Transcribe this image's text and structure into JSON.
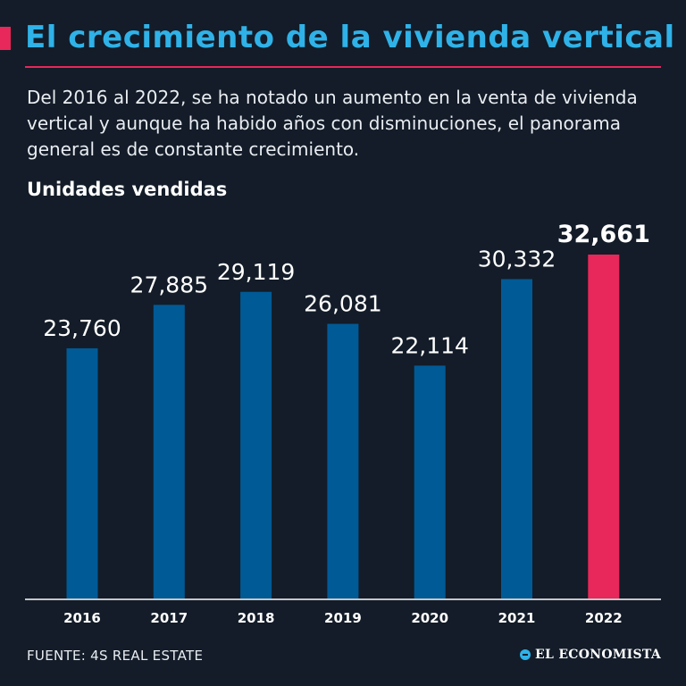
{
  "header": {
    "title": "El crecimiento de la vivienda vertical",
    "subtitle": "Del 2016 al 2022, se ha notado un aumento en la venta de vivienda vertical y aunque ha habido años con disminuciones, el panorama general es de constante crecimiento.",
    "units_label": "Unidades vendidas"
  },
  "footer": {
    "source": "FUENTE: 4S REAL ESTATE",
    "brand": "EL ECONOMISTA",
    "brand_icon": "globe-icon"
  },
  "colors": {
    "background": "#131c28",
    "title": "#2fb2e8",
    "accent": "#e8275a",
    "bar": "#005a96",
    "highlight_bar": "#e8275a"
  },
  "chart_data": {
    "type": "bar",
    "categories": [
      "2016",
      "2017",
      "2018",
      "2019",
      "2020",
      "2021",
      "2022"
    ],
    "values": [
      23760,
      27885,
      29119,
      26081,
      22114,
      30332,
      32661
    ],
    "value_labels": [
      "23,760",
      "27,885",
      "29,119",
      "26,081",
      "22,114",
      "30,332",
      "32,661"
    ],
    "highlight_index": 6,
    "title": "",
    "xlabel": "",
    "ylabel": "Unidades vendidas",
    "ylim": [
      0,
      32661
    ],
    "grid": false,
    "legend": "none"
  }
}
